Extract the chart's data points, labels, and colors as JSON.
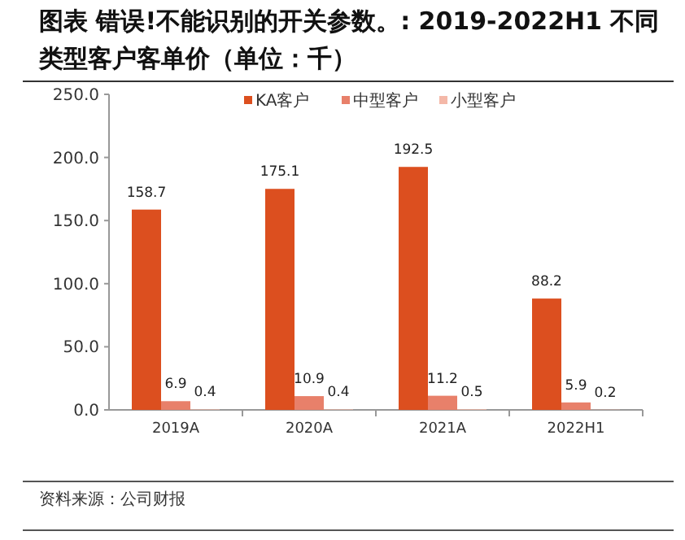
{
  "chart_data": {
    "type": "bar",
    "title": "图表 错误!不能识别的开关参数。: 2019-2022H1 不同类型客户客单价（单位：千）",
    "categories": [
      "2019A",
      "2020A",
      "2021A",
      "2022H1"
    ],
    "series": [
      {
        "name": "KA客户",
        "color": "#dc4f1f",
        "values": [
          158.7,
          175.1,
          192.5,
          88.2
        ]
      },
      {
        "name": "中型客户",
        "color": "#e8806a",
        "values": [
          6.9,
          10.9,
          11.2,
          5.9
        ]
      },
      {
        "name": "小型客户",
        "color": "#f4b8a8",
        "values": [
          0.4,
          0.4,
          0.5,
          0.2
        ]
      }
    ],
    "ylim": [
      0,
      250
    ],
    "yticks": [
      {
        "value": 0,
        "label": "0.0"
      },
      {
        "value": 50,
        "label": "50.0"
      },
      {
        "value": 100,
        "label": "100.0"
      },
      {
        "value": 150,
        "label": "150.0"
      },
      {
        "value": 200,
        "label": "200.0"
      },
      {
        "value": 250,
        "label": "250.0"
      }
    ],
    "data_labels": true,
    "legend": "top",
    "grid": false,
    "annotations": [
      "资料来源：公司财报"
    ]
  }
}
